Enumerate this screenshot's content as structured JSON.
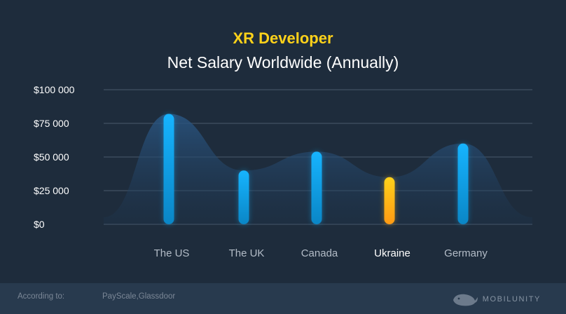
{
  "header": {
    "title": "XR Developer",
    "subtitle": "Net Salary Worldwide (Annually)"
  },
  "chart_data": {
    "type": "bar",
    "categories": [
      "The US",
      "The UK",
      "Canada",
      "Ukraine",
      "Germany"
    ],
    "values": [
      82000,
      40000,
      54000,
      35000,
      60000
    ],
    "highlight": "Ukraine",
    "y_ticks": [
      "$0",
      "$25 000",
      "$50 000",
      "$75 000",
      "$100 000"
    ],
    "ylim": [
      0,
      100000
    ],
    "grid": true,
    "colors": {
      "bar": "#12a4e8",
      "highlight": "#ffb61c",
      "area": "#24466a",
      "grid": "#3b4b5d"
    }
  },
  "footer": {
    "according_label": "According to:",
    "sources": "PayScale,Glassdoor",
    "brand": "MOBILUNITY"
  }
}
